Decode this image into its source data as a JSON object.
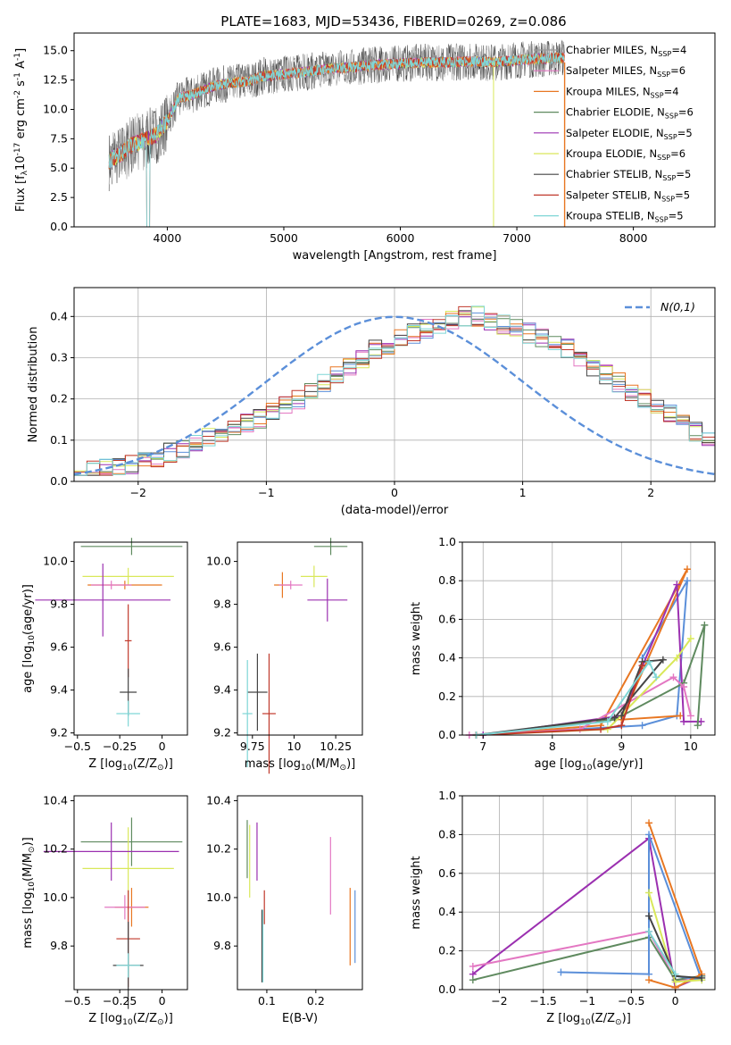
{
  "figure": {
    "title": "PLATE=1683, MJD=53436, FIBERID=0269, z=0.086"
  },
  "chart_data": [
    {
      "id": "spectrum",
      "type": "line",
      "xlabel": "wavelength [Angstrom, rest frame]",
      "ylabel": "Flux [f$_\\lambda$10$^{-17}$ erg cm$^{-2}$ s$^{-1}$ A$^{-1}$]",
      "xlim": [
        3200,
        8700
      ],
      "ylim": [
        0,
        16.5
      ],
      "xticks": [
        4000,
        5000,
        6000,
        7000,
        8000
      ],
      "yticks": [
        0.0,
        2.5,
        5.0,
        7.5,
        10.0,
        12.5,
        15.0
      ],
      "legend_position": "right",
      "data_x": [
        3500,
        3600,
        3700,
        3800,
        3900,
        4000,
        4100,
        4200,
        4300,
        4400,
        4500,
        4600,
        4700,
        4800,
        4900,
        5000,
        5200,
        5400,
        5600,
        5800,
        6000,
        6200,
        6400,
        6600,
        6800,
        7000,
        7200,
        7400
      ],
      "data_y": [
        5.6,
        6.2,
        7.0,
        7.4,
        7.8,
        9.0,
        11.0,
        11.2,
        11.6,
        12.0,
        12.2,
        12.3,
        12.4,
        12.8,
        12.9,
        13.0,
        13.2,
        13.5,
        13.6,
        13.8,
        13.9,
        14.0,
        14.0,
        14.1,
        14.0,
        14.2,
        14.3,
        14.4
      ],
      "series": [
        {
          "name": "Chabrier MILES, N$_{SSP}$=4",
          "color": "#999999"
        },
        {
          "name": "Salpeter MILES, N$_{SSP}$=6",
          "color": "#e377c2"
        },
        {
          "name": "Kroupa MILES, N$_{SSP}$=4",
          "color": "#e87722"
        },
        {
          "name": "Chabrier ELODIE, N$_{SSP}$=6",
          "color": "#5f8a5f"
        },
        {
          "name": "Salpeter ELODIE, N$_{SSP}$=5",
          "color": "#9b30b0"
        },
        {
          "name": "Kroupa ELODIE, N$_{SSP}$=6",
          "color": "#d9e85a"
        },
        {
          "name": "Chabrier STELIB, N$_{SSP}$=5",
          "color": "#444444"
        },
        {
          "name": "Salpeter STELIB, N$_{SSP}$=5",
          "color": "#c0392b"
        },
        {
          "name": "Kroupa STELIB, N$_{SSP}$=5",
          "color": "#7fd6d6"
        }
      ]
    },
    {
      "id": "residuals",
      "type": "bar",
      "xlabel": "(data-model)/error",
      "ylabel": "Normed distribution",
      "xlim": [
        -2.5,
        2.5
      ],
      "ylim": [
        0,
        0.47
      ],
      "xticks": [
        -2,
        -1,
        0,
        1,
        2
      ],
      "yticks": [
        0.0,
        0.1,
        0.2,
        0.3,
        0.4
      ],
      "grid": true,
      "legend_position": "top-right",
      "reference_curve": {
        "name": "$\\mathcal{N}(0,1)$",
        "color": "#5b8fd9"
      },
      "bin_width": 0.1,
      "bins_start": -2.5,
      "histogram": [
        0.02,
        0.025,
        0.03,
        0.035,
        0.04,
        0.05,
        0.06,
        0.07,
        0.08,
        0.09,
        0.11,
        0.12,
        0.13,
        0.14,
        0.15,
        0.17,
        0.19,
        0.2,
        0.22,
        0.24,
        0.26,
        0.28,
        0.3,
        0.32,
        0.33,
        0.35,
        0.36,
        0.37,
        0.38,
        0.39,
        0.4,
        0.4,
        0.39,
        0.38,
        0.37,
        0.36,
        0.35,
        0.34,
        0.32,
        0.3,
        0.28,
        0.26,
        0.24,
        0.22,
        0.2,
        0.18,
        0.16,
        0.14,
        0.12,
        0.1,
        0.09,
        0.08,
        0.07,
        0.06,
        0.05,
        0.045,
        0.04,
        0.035,
        0.03,
        0.03,
        0.025,
        0.02,
        0.02,
        0.02,
        0.02,
        0.02,
        0.02,
        0.02,
        0.02,
        0.02
      ]
    },
    {
      "id": "age-vs-Z",
      "type": "scatter",
      "xlabel": "Z [log$_{10}$(Z/Z$_\\odot$)]",
      "ylabel": "age  [log$_{10}$(age/yr)]",
      "xlim": [
        -0.52,
        0.15
      ],
      "ylim": [
        9.19,
        10.09
      ],
      "xticks": [
        -0.5,
        -0.25,
        0.0
      ],
      "yticks": [
        9.2,
        9.4,
        9.6,
        9.8,
        10.0
      ],
      "points": [
        {
          "x": -0.18,
          "y": 10.07,
          "xerr": 0.3,
          "yerr": 0.04,
          "color": "#5f8a5f"
        },
        {
          "x": -0.2,
          "y": 9.93,
          "xerr": 0.27,
          "yerr": 0.04,
          "color": "#d9e85a"
        },
        {
          "x": -0.22,
          "y": 9.89,
          "xerr": 0.22,
          "yerr": 0.02,
          "color": "#e87722"
        },
        {
          "x": -0.3,
          "y": 9.89,
          "xerr": 0.12,
          "yerr": 0.02,
          "color": "#e377c2"
        },
        {
          "x": -0.35,
          "y": 9.82,
          "xerr": 0.4,
          "yerr": 0.17,
          "color": "#9b30b0"
        },
        {
          "x": -0.2,
          "y": 9.63,
          "xerr": 0.02,
          "yerr": 0.17,
          "color": "#c0392b"
        },
        {
          "x": -0.2,
          "y": 9.39,
          "xerr": 0.05,
          "yerr": 0.11,
          "color": "#444444"
        },
        {
          "x": -0.2,
          "y": 9.29,
          "xerr": 0.07,
          "yerr": 0.06,
          "color": "#7fd6d6"
        }
      ]
    },
    {
      "id": "age-vs-mass",
      "type": "scatter",
      "xlabel": "mass [log$_{10}$(M/M$_\\odot$)]",
      "ylabel": "",
      "xlim": [
        9.66,
        10.41
      ],
      "ylim": [
        9.19,
        10.09
      ],
      "xticks": [
        9.75,
        10.0,
        10.25
      ],
      "yticks": [
        9.2,
        9.4,
        9.6,
        9.8,
        10.0
      ],
      "points": [
        {
          "x": 10.22,
          "y": 10.07,
          "xerr": 0.1,
          "yerr": 0.04,
          "color": "#5f8a5f"
        },
        {
          "x": 10.12,
          "y": 9.93,
          "xerr": 0.08,
          "yerr": 0.05,
          "color": "#d9e85a"
        },
        {
          "x": 9.93,
          "y": 9.89,
          "xerr": 0.05,
          "yerr": 0.06,
          "color": "#e87722"
        },
        {
          "x": 9.98,
          "y": 9.89,
          "xerr": 0.07,
          "yerr": 0.02,
          "color": "#e377c2"
        },
        {
          "x": 10.2,
          "y": 9.82,
          "xerr": 0.12,
          "yerr": 0.1,
          "color": "#9b30b0"
        },
        {
          "x": 9.85,
          "y": 9.29,
          "xerr": 0.04,
          "yerr": 0.28,
          "color": "#c0392b"
        },
        {
          "x": 9.78,
          "y": 9.39,
          "xerr": 0.06,
          "yerr": 0.18,
          "color": "#444444"
        },
        {
          "x": 9.72,
          "y": 9.29,
          "xerr": 0.03,
          "yerr": 0.25,
          "color": "#7fd6d6"
        }
      ]
    },
    {
      "id": "weight-vs-age",
      "type": "line",
      "xlabel": "age  [log$_{10}$(age/yr)]",
      "ylabel": "mass weight",
      "xlim": [
        6.7,
        10.35
      ],
      "ylim": [
        0,
        1.0
      ],
      "xticks": [
        7,
        8,
        9,
        10
      ],
      "yticks": [
        0.0,
        0.2,
        0.4,
        0.6,
        0.8,
        1.0
      ],
      "grid": true,
      "series": [
        {
          "color": "#5b8fd9",
          "x": [
            6.9,
            9.3,
            9.8,
            9.95,
            9.3
          ],
          "y": [
            0.0,
            0.05,
            0.1,
            0.8,
            0.4
          ]
        },
        {
          "color": "#e87722",
          "x": [
            6.9,
            8.7,
            9.95,
            9.0,
            9.85
          ],
          "y": [
            0.0,
            0.05,
            0.86,
            0.08,
            0.1
          ]
        },
        {
          "color": "#9b30b0",
          "x": [
            7.0,
            9.0,
            9.8,
            9.9,
            10.15
          ],
          "y": [
            0.0,
            0.1,
            0.78,
            0.07,
            0.07
          ]
        },
        {
          "color": "#5f8a5f",
          "x": [
            6.9,
            8.9,
            9.9,
            10.2,
            10.1
          ],
          "y": [
            0.0,
            0.08,
            0.27,
            0.57,
            0.05
          ]
        },
        {
          "color": "#e377c2",
          "x": [
            6.8,
            8.4,
            9.75,
            9.9,
            10.0
          ],
          "y": [
            0.0,
            0.03,
            0.3,
            0.25,
            0.1
          ]
        },
        {
          "color": "#d9e85a",
          "x": [
            6.9,
            8.8,
            9.8,
            10.0
          ],
          "y": [
            0.0,
            0.03,
            0.4,
            0.5
          ]
        },
        {
          "color": "#444444",
          "x": [
            6.9,
            8.9,
            9.6,
            9.3,
            9.0
          ],
          "y": [
            0.0,
            0.09,
            0.39,
            0.38,
            0.1
          ]
        },
        {
          "color": "#c0392b",
          "x": [
            6.9,
            8.7,
            9.0,
            9.3
          ],
          "y": [
            0.0,
            0.03,
            0.05,
            0.36
          ]
        },
        {
          "color": "#7fd6d6",
          "x": [
            6.9,
            8.8,
            9.4,
            9.5
          ],
          "y": [
            0.0,
            0.07,
            0.38,
            0.3
          ]
        }
      ]
    },
    {
      "id": "mass-vs-Z",
      "type": "scatter",
      "xlabel": "Z [log$_{10}$(Z/Z$_\\odot$)]",
      "ylabel": "mass [log$_{10}$(M/M$_\\odot$)]",
      "xlim": [
        -0.52,
        0.15
      ],
      "ylim": [
        9.62,
        10.42
      ],
      "xticks": [
        -0.5,
        -0.25,
        0.0
      ],
      "yticks": [
        9.8,
        10.0,
        10.2,
        10.4
      ],
      "points": [
        {
          "x": -0.18,
          "y": 10.23,
          "xerr": 0.3,
          "yerr": 0.1,
          "color": "#5f8a5f"
        },
        {
          "x": -0.2,
          "y": 10.12,
          "xerr": 0.27,
          "yerr": 0.17,
          "color": "#d9e85a"
        },
        {
          "x": -0.3,
          "y": 10.19,
          "xerr": 0.4,
          "yerr": 0.12,
          "color": "#9b30b0"
        },
        {
          "x": -0.18,
          "y": 9.96,
          "xerr": 0.1,
          "yerr": 0.08,
          "color": "#e87722"
        },
        {
          "x": -0.22,
          "y": 9.96,
          "xerr": 0.12,
          "yerr": 0.05,
          "color": "#e377c2"
        },
        {
          "x": -0.2,
          "y": 9.83,
          "xerr": 0.07,
          "yerr": 0.2,
          "color": "#c0392b"
        },
        {
          "x": -0.2,
          "y": 9.72,
          "xerr": 0.09,
          "yerr": 0.18,
          "color": "#444444"
        },
        {
          "x": -0.2,
          "y": 9.72,
          "xerr": 0.07,
          "yerr": 0.05,
          "color": "#7fd6d6"
        }
      ]
    },
    {
      "id": "mass-vs-EBV",
      "type": "scatter",
      "xlabel": "E(B-V)",
      "ylabel": "",
      "xlim": [
        0.04,
        0.295
      ],
      "ylim": [
        9.62,
        10.42
      ],
      "xticks": [
        0.1,
        0.2
      ],
      "yticks": [
        9.8,
        10.0,
        10.2,
        10.4
      ],
      "points": [
        {
          "x": 0.06,
          "y": 10.2,
          "xerr": 0,
          "yerr": 0.12,
          "color": "#5f8a5f"
        },
        {
          "x": 0.065,
          "y": 10.15,
          "xerr": 0,
          "yerr": 0.15,
          "color": "#d9e85a"
        },
        {
          "x": 0.08,
          "y": 10.19,
          "xerr": 0,
          "yerr": 0.12,
          "color": "#9b30b0"
        },
        {
          "x": 0.095,
          "y": 9.96,
          "xerr": 0,
          "yerr": 0.07,
          "color": "#c0392b"
        },
        {
          "x": 0.09,
          "y": 9.8,
          "xerr": 0,
          "yerr": 0.15,
          "color": "#444444"
        },
        {
          "x": 0.092,
          "y": 9.8,
          "xerr": 0,
          "yerr": 0.15,
          "color": "#7fd6d6"
        },
        {
          "x": 0.23,
          "y": 10.09,
          "xerr": 0,
          "yerr": 0.16,
          "color": "#e377c2"
        },
        {
          "x": 0.27,
          "y": 9.88,
          "xerr": 0,
          "yerr": 0.16,
          "color": "#e87722"
        },
        {
          "x": 0.28,
          "y": 9.88,
          "xerr": 0,
          "yerr": 0.15,
          "color": "#5b8fd9"
        }
      ]
    },
    {
      "id": "weight-vs-Z",
      "type": "line",
      "xlabel": "Z [log$_{10}$(Z/Z$_\\odot$)]",
      "ylabel": "mass weight",
      "xlim": [
        -2.42,
        0.45
      ],
      "ylim": [
        0,
        1.0
      ],
      "xticks": [
        -2.0,
        -1.5,
        -1.0,
        -0.5,
        0.0
      ],
      "yticks": [
        0.0,
        0.2,
        0.4,
        0.6,
        0.8,
        1.0
      ],
      "grid": true,
      "series": [
        {
          "color": "#9b30b0",
          "x": [
            -2.3,
            -0.3,
            0.0,
            0.3
          ],
          "y": [
            0.08,
            0.78,
            0.01,
            0.07
          ]
        },
        {
          "color": "#e377c2",
          "x": [
            -2.3,
            -0.3,
            0.0,
            0.3
          ],
          "y": [
            0.12,
            0.3,
            0.05,
            0.05
          ]
        },
        {
          "color": "#5f8a5f",
          "x": [
            -2.3,
            -0.3,
            0.0,
            0.3
          ],
          "y": [
            0.05,
            0.27,
            0.05,
            0.07
          ]
        },
        {
          "color": "#5b8fd9",
          "x": [
            -1.3,
            -0.3,
            -0.3,
            0.3,
            0.0
          ],
          "y": [
            0.09,
            0.08,
            0.8,
            0.05,
            0.07
          ]
        },
        {
          "color": "#e87722",
          "x": [
            -0.3,
            0.3,
            0.0,
            -0.3
          ],
          "y": [
            0.86,
            0.08,
            0.01,
            0.05
          ]
        },
        {
          "color": "#d9e85a",
          "x": [
            -0.3,
            0.0,
            0.3
          ],
          "y": [
            0.5,
            0.04,
            0.05
          ]
        },
        {
          "color": "#444444",
          "x": [
            -0.3,
            0.0,
            0.3
          ],
          "y": [
            0.38,
            0.07,
            0.06
          ]
        },
        {
          "color": "#7fd6d6",
          "x": [
            -0.3,
            0.0
          ],
          "y": [
            0.3,
            0.08
          ]
        }
      ]
    }
  ]
}
